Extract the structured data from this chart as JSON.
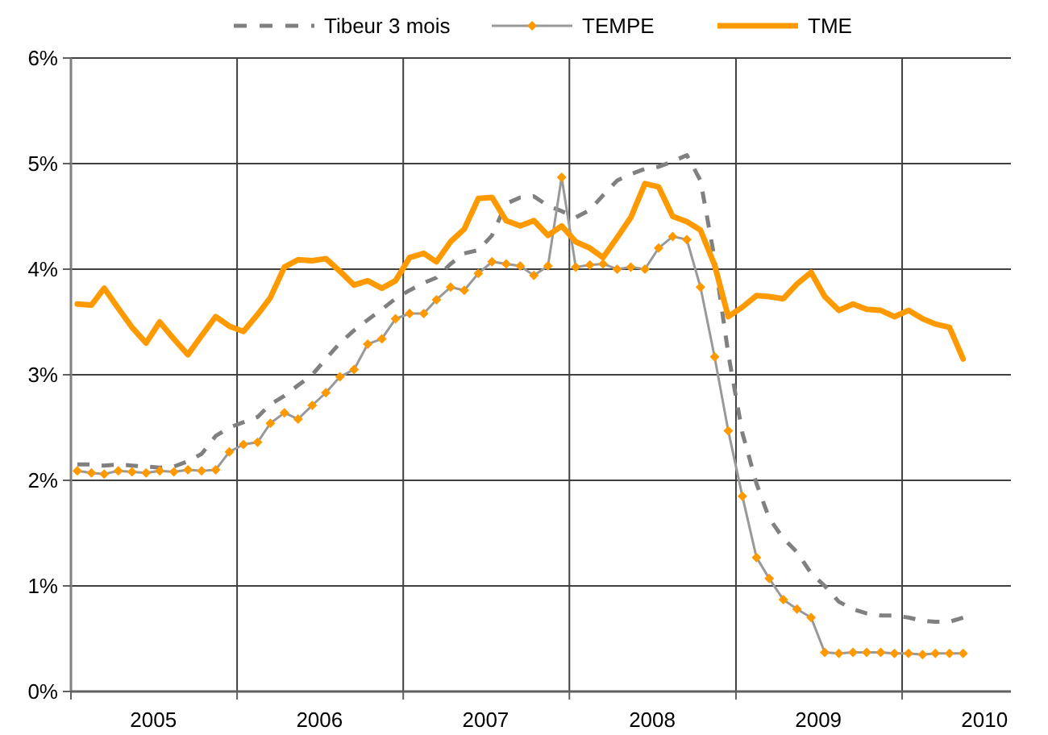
{
  "chart_data": {
    "type": "line",
    "x": [
      "2005-01-15",
      "2005-02-15",
      "2005-03-15",
      "2005-04-15",
      "2005-05-15",
      "2005-06-15",
      "2005-07-15",
      "2005-08-15",
      "2005-09-15",
      "2005-10-15",
      "2005-11-15",
      "2005-12-15",
      "2006-01-15",
      "2006-02-15",
      "2006-03-15",
      "2006-04-15",
      "2006-05-15",
      "2006-06-15",
      "2006-07-15",
      "2006-08-15",
      "2006-09-15",
      "2006-10-15",
      "2006-11-15",
      "2006-12-15",
      "2007-01-15",
      "2007-02-15",
      "2007-03-15",
      "2007-04-15",
      "2007-05-15",
      "2007-06-15",
      "2007-07-15",
      "2007-08-15",
      "2007-09-15",
      "2007-10-15",
      "2007-11-15",
      "2007-12-15",
      "2008-01-15",
      "2008-02-15",
      "2008-03-15",
      "2008-04-15",
      "2008-05-15",
      "2008-06-15",
      "2008-07-15",
      "2008-08-15",
      "2008-09-15",
      "2008-10-15",
      "2008-11-15",
      "2008-12-15",
      "2009-01-15",
      "2009-02-15",
      "2009-03-15",
      "2009-04-15",
      "2009-05-15",
      "2009-06-15",
      "2009-07-15",
      "2009-08-15",
      "2009-09-15",
      "2009-10-15",
      "2009-11-15",
      "2009-12-15",
      "2010-01-15",
      "2010-02-15",
      "2010-03-15",
      "2010-04-15",
      "2010-05-15"
    ],
    "series": [
      {
        "name": "Tibeur 3 mois",
        "color": "#808080",
        "line_style": "dashed",
        "marker": "none",
        "values": [
          2.15,
          2.15,
          2.14,
          2.15,
          2.14,
          2.13,
          2.12,
          2.13,
          2.18,
          2.25,
          2.42,
          2.5,
          2.55,
          2.6,
          2.72,
          2.8,
          2.9,
          3.0,
          3.15,
          3.3,
          3.42,
          3.52,
          3.62,
          3.72,
          3.8,
          3.87,
          3.92,
          4.05,
          4.15,
          4.18,
          4.32,
          4.62,
          4.68,
          4.69,
          4.6,
          4.55,
          4.49,
          4.56,
          4.7,
          4.84,
          4.9,
          4.95,
          4.97,
          5.02,
          5.08,
          4.84,
          4.1,
          3.2,
          2.45,
          1.97,
          1.64,
          1.45,
          1.32,
          1.12,
          1.0,
          0.85,
          0.78,
          0.74,
          0.72,
          0.72,
          0.7,
          0.67,
          0.66,
          0.66,
          0.7
        ]
      },
      {
        "name": "TEMPE",
        "color": "#ff9900",
        "line_style": "solid",
        "marker": "diamond",
        "values": [
          2.09,
          2.07,
          2.06,
          2.09,
          2.08,
          2.07,
          2.09,
          2.08,
          2.1,
          2.09,
          2.1,
          2.27,
          2.34,
          2.36,
          2.54,
          2.64,
          2.58,
          2.71,
          2.83,
          2.98,
          3.05,
          3.29,
          3.34,
          3.53,
          3.58,
          3.58,
          3.71,
          3.83,
          3.8,
          3.96,
          4.07,
          4.05,
          4.03,
          3.94,
          4.03,
          4.87,
          4.02,
          4.04,
          4.05,
          4.0,
          4.02,
          4.0,
          4.2,
          4.31,
          4.28,
          3.83,
          3.17,
          2.47,
          1.85,
          1.27,
          1.07,
          0.87,
          0.78,
          0.7,
          0.37,
          0.36,
          0.37,
          0.37,
          0.37,
          0.36,
          0.36,
          0.35,
          0.36,
          0.36,
          0.36
        ]
      },
      {
        "name": "TME",
        "color": "#ff9900",
        "line_style": "solid",
        "marker": "none",
        "values": [
          3.67,
          3.66,
          3.82,
          3.63,
          3.45,
          3.3,
          3.5,
          3.34,
          3.19,
          3.37,
          3.55,
          3.46,
          3.41,
          3.57,
          3.73,
          4.02,
          4.09,
          4.08,
          4.1,
          3.98,
          3.85,
          3.89,
          3.82,
          3.89,
          4.11,
          4.15,
          4.07,
          4.26,
          4.38,
          4.67,
          4.68,
          4.46,
          4.41,
          4.46,
          4.32,
          4.41,
          4.26,
          4.2,
          4.11,
          4.3,
          4.49,
          4.81,
          4.78,
          4.5,
          4.45,
          4.37,
          4.04,
          3.55,
          3.64,
          3.75,
          3.74,
          3.72,
          3.86,
          3.97,
          3.74,
          3.61,
          3.67,
          3.62,
          3.61,
          3.55,
          3.61,
          3.53,
          3.48,
          3.45,
          3.15
        ]
      }
    ],
    "xlim": [
      "2005-01-01",
      "2010-08-28"
    ],
    "xticks": [
      {
        "value": "2005-01-01",
        "label": null
      },
      {
        "value": "2005-07-01",
        "label": "2005"
      },
      {
        "value": "2006-01-01",
        "label": null
      },
      {
        "value": "2006-07-01",
        "label": "2006"
      },
      {
        "value": "2007-01-01",
        "label": null
      },
      {
        "value": "2007-07-01",
        "label": "2007"
      },
      {
        "value": "2008-01-01",
        "label": null
      },
      {
        "value": "2008-07-01",
        "label": "2008"
      },
      {
        "value": "2009-01-01",
        "label": null
      },
      {
        "value": "2009-07-01",
        "label": "2009"
      },
      {
        "value": "2010-01-01",
        "label": null
      },
      {
        "value": "2010-07-01",
        "label": "2010"
      }
    ],
    "ylim": [
      0,
      6
    ],
    "yticks": [
      {
        "value": 0,
        "label": "0%"
      },
      {
        "value": 1,
        "label": "1%"
      },
      {
        "value": 2,
        "label": "2%"
      },
      {
        "value": 3,
        "label": "3%"
      },
      {
        "value": 4,
        "label": "4%"
      },
      {
        "value": 5,
        "label": "5%"
      },
      {
        "value": 6,
        "label": "6%"
      }
    ],
    "grid": true,
    "legend": "top"
  }
}
